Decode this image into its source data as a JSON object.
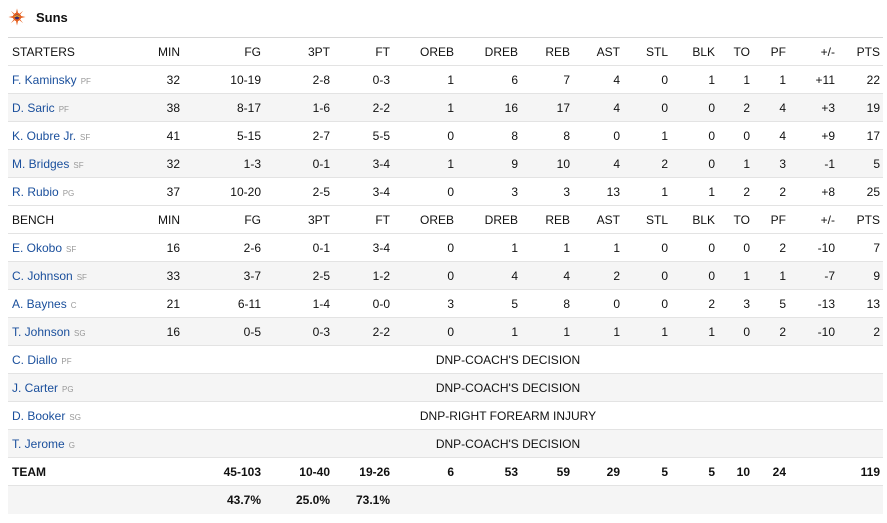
{
  "team": {
    "name": "Suns",
    "logo_icon": "suns-sunburst-logo",
    "accent": "#e56020"
  },
  "columns": [
    "MIN",
    "FG",
    "3PT",
    "FT",
    "OREB",
    "DREB",
    "REB",
    "AST",
    "STL",
    "BLK",
    "TO",
    "PF",
    "+/-",
    "PTS"
  ],
  "starters_label": "STARTERS",
  "bench_label": "BENCH",
  "starters": [
    {
      "name": "F. Kaminsky",
      "pos": "PF",
      "stats": [
        "32",
        "10-19",
        "2-8",
        "0-3",
        "1",
        "6",
        "7",
        "4",
        "0",
        "1",
        "1",
        "1",
        "+11",
        "22"
      ]
    },
    {
      "name": "D. Saric",
      "pos": "PF",
      "stats": [
        "38",
        "8-17",
        "1-6",
        "2-2",
        "1",
        "16",
        "17",
        "4",
        "0",
        "0",
        "2",
        "4",
        "+3",
        "19"
      ]
    },
    {
      "name": "K. Oubre Jr.",
      "pos": "SF",
      "stats": [
        "41",
        "5-15",
        "2-7",
        "5-5",
        "0",
        "8",
        "8",
        "0",
        "1",
        "0",
        "0",
        "4",
        "+9",
        "17"
      ]
    },
    {
      "name": "M. Bridges",
      "pos": "SF",
      "stats": [
        "32",
        "1-3",
        "0-1",
        "3-4",
        "1",
        "9",
        "10",
        "4",
        "2",
        "0",
        "1",
        "3",
        "-1",
        "5"
      ]
    },
    {
      "name": "R. Rubio",
      "pos": "PG",
      "stats": [
        "37",
        "10-20",
        "2-5",
        "3-4",
        "0",
        "3",
        "3",
        "13",
        "1",
        "1",
        "2",
        "2",
        "+8",
        "25"
      ]
    }
  ],
  "bench": [
    {
      "name": "E. Okobo",
      "pos": "SF",
      "stats": [
        "16",
        "2-6",
        "0-1",
        "3-4",
        "0",
        "1",
        "1",
        "1",
        "0",
        "0",
        "0",
        "2",
        "-10",
        "7"
      ]
    },
    {
      "name": "C. Johnson",
      "pos": "SF",
      "stats": [
        "33",
        "3-7",
        "2-5",
        "1-2",
        "0",
        "4",
        "4",
        "2",
        "0",
        "0",
        "1",
        "1",
        "-7",
        "9"
      ]
    },
    {
      "name": "A. Baynes",
      "pos": "C",
      "stats": [
        "21",
        "6-11",
        "1-4",
        "0-0",
        "3",
        "5",
        "8",
        "0",
        "0",
        "2",
        "3",
        "5",
        "-13",
        "13"
      ]
    },
    {
      "name": "T. Johnson",
      "pos": "SG",
      "stats": [
        "16",
        "0-5",
        "0-3",
        "2-2",
        "0",
        "1",
        "1",
        "1",
        "1",
        "1",
        "0",
        "2",
        "-10",
        "2"
      ]
    }
  ],
  "dnp": [
    {
      "name": "C. Diallo",
      "pos": "PF",
      "reason": "DNP-COACH'S DECISION"
    },
    {
      "name": "J. Carter",
      "pos": "PG",
      "reason": "DNP-COACH'S DECISION"
    },
    {
      "name": "D. Booker",
      "pos": "SG",
      "reason": "DNP-RIGHT FOREARM INJURY"
    },
    {
      "name": "T. Jerome",
      "pos": "G",
      "reason": "DNP-COACH'S DECISION"
    }
  ],
  "totals": {
    "label": "TEAM",
    "stats": [
      "",
      "45-103",
      "10-40",
      "19-26",
      "6",
      "53",
      "59",
      "29",
      "5",
      "5",
      "10",
      "24",
      "",
      "119"
    ]
  },
  "percentages": {
    "stats": [
      "",
      "43.7%",
      "25.0%",
      "73.1%",
      "",
      "",
      "",
      "",
      "",
      "",
      "",
      "",
      "",
      ""
    ]
  }
}
